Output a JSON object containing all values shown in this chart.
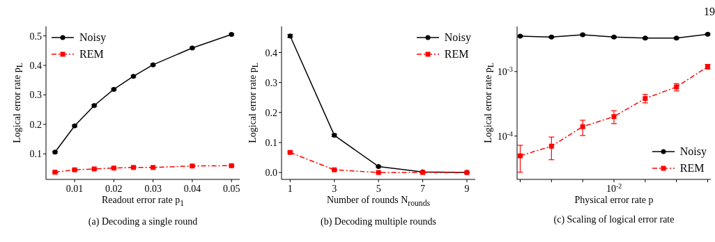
{
  "chart_data": [
    {
      "type": "line",
      "title": "(a) Decoding a single round",
      "xlabel": "Readout error rate p$_{1}$",
      "ylabel": "Logical error rate p$_{L}$",
      "x": [
        0.005,
        0.01,
        0.015,
        0.02,
        0.025,
        0.03,
        0.04,
        0.05
      ],
      "xlim": [
        0.0027,
        0.0521
      ],
      "xticks": [
        0.01,
        0.02,
        0.03,
        0.04,
        0.05
      ],
      "ylim": [
        0.0135,
        0.532
      ],
      "yticks": [
        0.1,
        0.2,
        0.3,
        0.4,
        0.5
      ],
      "grid": false,
      "legend": "top left",
      "series": [
        {
          "name": "Noisy",
          "color": "#000000",
          "marker": "circle",
          "line_style": "solid",
          "values": [
            0.106,
            0.195,
            0.264,
            0.319,
            0.363,
            0.402,
            0.459,
            0.505
          ],
          "errors": [
            0.003,
            0.003,
            0.003,
            0.003,
            0.003,
            0.003,
            0.003,
            0.003
          ]
        },
        {
          "name": "REM",
          "color": "#ff0000",
          "marker": "square",
          "line_style": "dashed",
          "values": [
            0.038,
            0.046,
            0.049,
            0.052,
            0.054,
            0.054,
            0.059,
            0.06
          ],
          "errors": [
            0.002,
            0.002,
            0.002,
            0.002,
            0.002,
            0.002,
            0.002,
            0.002
          ]
        }
      ]
    },
    {
      "type": "line",
      "title": "(b) Decoding multiple rounds",
      "xlabel": "Number of rounds N$_{rounds}$",
      "ylabel": "Logical error rate p$_{L}$",
      "x": [
        1,
        3,
        5,
        7,
        9
      ],
      "xlim": [
        0.61,
        9.38
      ],
      "xticks": [
        1,
        3,
        5,
        7,
        9
      ],
      "ylim": [
        -0.023,
        0.487
      ],
      "yticks": [
        {
          "value": 0,
          "label": "0.0"
        },
        0.1,
        0.2,
        0.3,
        0.4
      ],
      "grid": false,
      "legend": "top right",
      "series": [
        {
          "name": "Noisy",
          "color": "#000000",
          "marker": "circle",
          "line_style": "solid",
          "values": [
            0.455,
            0.124,
            0.02,
            0.002,
            0.0
          ],
          "errors": [
            0.005,
            0.004,
            0.002,
            0.001,
            0.001
          ]
        },
        {
          "name": "REM",
          "color": "#ff0000",
          "marker": "square",
          "line_style": "dashed",
          "values": [
            0.067,
            0.009,
            0.0,
            0.0,
            0.0
          ],
          "errors": [
            0.003,
            0.002,
            0.001,
            0.001,
            0.001
          ]
        }
      ]
    },
    {
      "type": "line",
      "title": "(c) Scaling of logical error rate",
      "xlabel": "Physical error rate p",
      "ylabel": "Logical error rate p$_{L}$",
      "annotations": [
        "19"
      ],
      "log": "y",
      "categories": [
        null,
        null,
        null,
        "10$^{-2}$",
        null,
        null,
        null
      ],
      "ylim": [
        2.13e-05,
        0.005
      ],
      "yticks": [
        {
          "value": 0.0001,
          "label": "10$^{-4}$"
        },
        {
          "value": 0.001,
          "label": "10$^{-3}$"
        }
      ],
      "grid": false,
      "legend": "bottom right",
      "series": [
        {
          "name": "Noisy",
          "color": "#000000",
          "marker": "circle",
          "line_style": "solid",
          "values": [
            0.00354,
            0.00342,
            0.00372,
            0.00342,
            0.0033,
            0.0033,
            0.00379
          ],
          "errors": [
            0.0001,
            0.0001,
            0.0001,
            0.0001,
            0.0001,
            0.0001,
            0.0001
          ]
        },
        {
          "name": "REM",
          "color": "#ff0000",
          "marker": "square",
          "line_style": "dashed",
          "values": [
            4.94e-05,
            6.97e-05,
            0.00014,
            0.0002,
            0.000382,
            0.000577,
            0.00119
          ],
          "errors": [
            [
              2.76e-05,
              7.2e-05
            ],
            [
              4.3e-05,
              9.66e-05
            ],
            [
              0.000102,
              0.000176
            ],
            [
              0.000156,
              0.000247
            ],
            [
              0.000327,
              0.000442
            ],
            [
              0.0005,
              0.00065
            ],
            [
              0.00109,
              0.00129
            ]
          ]
        }
      ]
    }
  ]
}
